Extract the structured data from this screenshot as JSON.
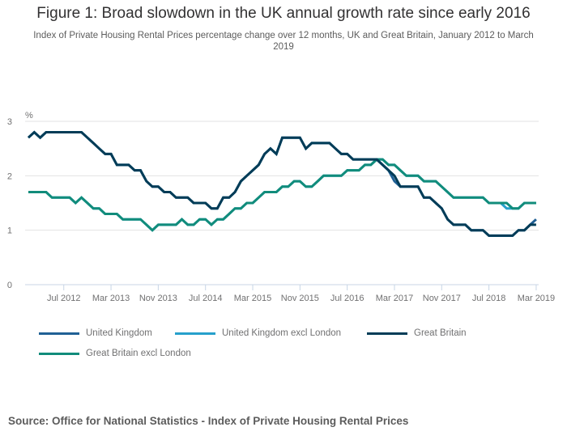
{
  "chart_data": {
    "type": "line",
    "title": "Figure 1: Broad slowdown in the UK annual growth rate since early 2016",
    "subtitle": "Index of Private Housing Rental Prices percentage change over 12 months, UK and Great Britain, January 2012 to March 2019",
    "ylabel": "%",
    "xlabel": "",
    "ylim": [
      0,
      3
    ],
    "yticks": [
      0,
      1,
      2,
      3
    ],
    "grid": true,
    "x_start": "Jan 2012",
    "x_end": "Mar 2019",
    "xtick_labels": [
      {
        "index": 6,
        "label": "Jul 2012"
      },
      {
        "index": 14,
        "label": "Mar 2013"
      },
      {
        "index": 22,
        "label": "Nov 2013"
      },
      {
        "index": 30,
        "label": "Jul 2014"
      },
      {
        "index": 38,
        "label": "Mar 2015"
      },
      {
        "index": 46,
        "label": "Nov 2015"
      },
      {
        "index": 54,
        "label": "Jul 2016"
      },
      {
        "index": 62,
        "label": "Mar 2017"
      },
      {
        "index": 70,
        "label": "Nov 2017"
      },
      {
        "index": 78,
        "label": "Jul 2018"
      },
      {
        "index": 86,
        "label": "Mar 2019"
      }
    ],
    "legend_position": "bottom",
    "series": [
      {
        "name": "United Kingdom",
        "color": "#206095",
        "values": [
          2.7,
          2.8,
          2.7,
          2.8,
          2.8,
          2.8,
          2.8,
          2.8,
          2.8,
          2.8,
          2.7,
          2.6,
          2.5,
          2.4,
          2.4,
          2.2,
          2.2,
          2.2,
          2.1,
          2.1,
          1.9,
          1.8,
          1.8,
          1.7,
          1.7,
          1.6,
          1.6,
          1.6,
          1.5,
          1.5,
          1.5,
          1.4,
          1.4,
          1.6,
          1.6,
          1.7,
          1.9,
          2.0,
          2.1,
          2.2,
          2.4,
          2.5,
          2.4,
          2.7,
          2.7,
          2.7,
          2.7,
          2.5,
          2.6,
          2.6,
          2.6,
          2.6,
          2.5,
          2.4,
          2.4,
          2.3,
          2.3,
          2.3,
          2.3,
          2.3,
          2.2,
          2.1,
          1.9,
          1.8,
          1.8,
          1.8,
          1.8,
          1.6,
          1.6,
          1.5,
          1.4,
          1.2,
          1.1,
          1.1,
          1.1,
          1.0,
          1.0,
          1.0,
          0.9,
          0.9,
          0.9,
          0.9,
          0.9,
          1.0,
          1.0,
          1.1,
          1.2
        ]
      },
      {
        "name": "United Kingdom excl London",
        "color": "#27a0cc",
        "values": [
          1.7,
          1.7,
          1.7,
          1.7,
          1.6,
          1.6,
          1.6,
          1.6,
          1.5,
          1.6,
          1.5,
          1.4,
          1.4,
          1.3,
          1.3,
          1.3,
          1.2,
          1.2,
          1.2,
          1.2,
          1.1,
          1.0,
          1.1,
          1.1,
          1.1,
          1.1,
          1.2,
          1.1,
          1.1,
          1.2,
          1.2,
          1.1,
          1.2,
          1.2,
          1.3,
          1.4,
          1.4,
          1.5,
          1.5,
          1.6,
          1.7,
          1.7,
          1.7,
          1.8,
          1.8,
          1.9,
          1.9,
          1.8,
          1.8,
          1.9,
          2.0,
          2.0,
          2.0,
          2.0,
          2.1,
          2.1,
          2.1,
          2.2,
          2.2,
          2.3,
          2.3,
          2.2,
          2.2,
          2.1,
          2.0,
          2.0,
          2.0,
          1.9,
          1.9,
          1.9,
          1.8,
          1.7,
          1.6,
          1.6,
          1.6,
          1.6,
          1.6,
          1.6,
          1.5,
          1.5,
          1.5,
          1.4,
          1.4,
          1.4,
          1.5,
          1.5,
          1.5
        ]
      },
      {
        "name": "Great Britain",
        "color": "#003c57",
        "values": [
          2.7,
          2.8,
          2.7,
          2.8,
          2.8,
          2.8,
          2.8,
          2.8,
          2.8,
          2.8,
          2.7,
          2.6,
          2.5,
          2.4,
          2.4,
          2.2,
          2.2,
          2.2,
          2.1,
          2.1,
          1.9,
          1.8,
          1.8,
          1.7,
          1.7,
          1.6,
          1.6,
          1.6,
          1.5,
          1.5,
          1.5,
          1.4,
          1.4,
          1.6,
          1.6,
          1.7,
          1.9,
          2.0,
          2.1,
          2.2,
          2.4,
          2.5,
          2.4,
          2.7,
          2.7,
          2.7,
          2.7,
          2.5,
          2.6,
          2.6,
          2.6,
          2.6,
          2.5,
          2.4,
          2.4,
          2.3,
          2.3,
          2.3,
          2.3,
          2.3,
          2.2,
          2.1,
          2.0,
          1.8,
          1.8,
          1.8,
          1.8,
          1.6,
          1.6,
          1.5,
          1.4,
          1.2,
          1.1,
          1.1,
          1.1,
          1.0,
          1.0,
          1.0,
          0.9,
          0.9,
          0.9,
          0.9,
          0.9,
          1.0,
          1.0,
          1.1,
          1.1
        ]
      },
      {
        "name": "Great Britain excl London",
        "color": "#118c7b",
        "values": [
          1.7,
          1.7,
          1.7,
          1.7,
          1.6,
          1.6,
          1.6,
          1.6,
          1.5,
          1.6,
          1.5,
          1.4,
          1.4,
          1.3,
          1.3,
          1.3,
          1.2,
          1.2,
          1.2,
          1.2,
          1.1,
          1.0,
          1.1,
          1.1,
          1.1,
          1.1,
          1.2,
          1.1,
          1.1,
          1.2,
          1.2,
          1.1,
          1.2,
          1.2,
          1.3,
          1.4,
          1.4,
          1.5,
          1.5,
          1.6,
          1.7,
          1.7,
          1.7,
          1.8,
          1.8,
          1.9,
          1.9,
          1.8,
          1.8,
          1.9,
          2.0,
          2.0,
          2.0,
          2.0,
          2.1,
          2.1,
          2.1,
          2.2,
          2.2,
          2.3,
          2.3,
          2.2,
          2.2,
          2.1,
          2.0,
          2.0,
          2.0,
          1.9,
          1.9,
          1.9,
          1.8,
          1.7,
          1.6,
          1.6,
          1.6,
          1.6,
          1.6,
          1.6,
          1.5,
          1.5,
          1.5,
          1.5,
          1.4,
          1.4,
          1.5,
          1.5,
          1.5
        ]
      }
    ]
  },
  "source": "Source: Office for National Statistics - Index of Private Housing Rental Prices"
}
